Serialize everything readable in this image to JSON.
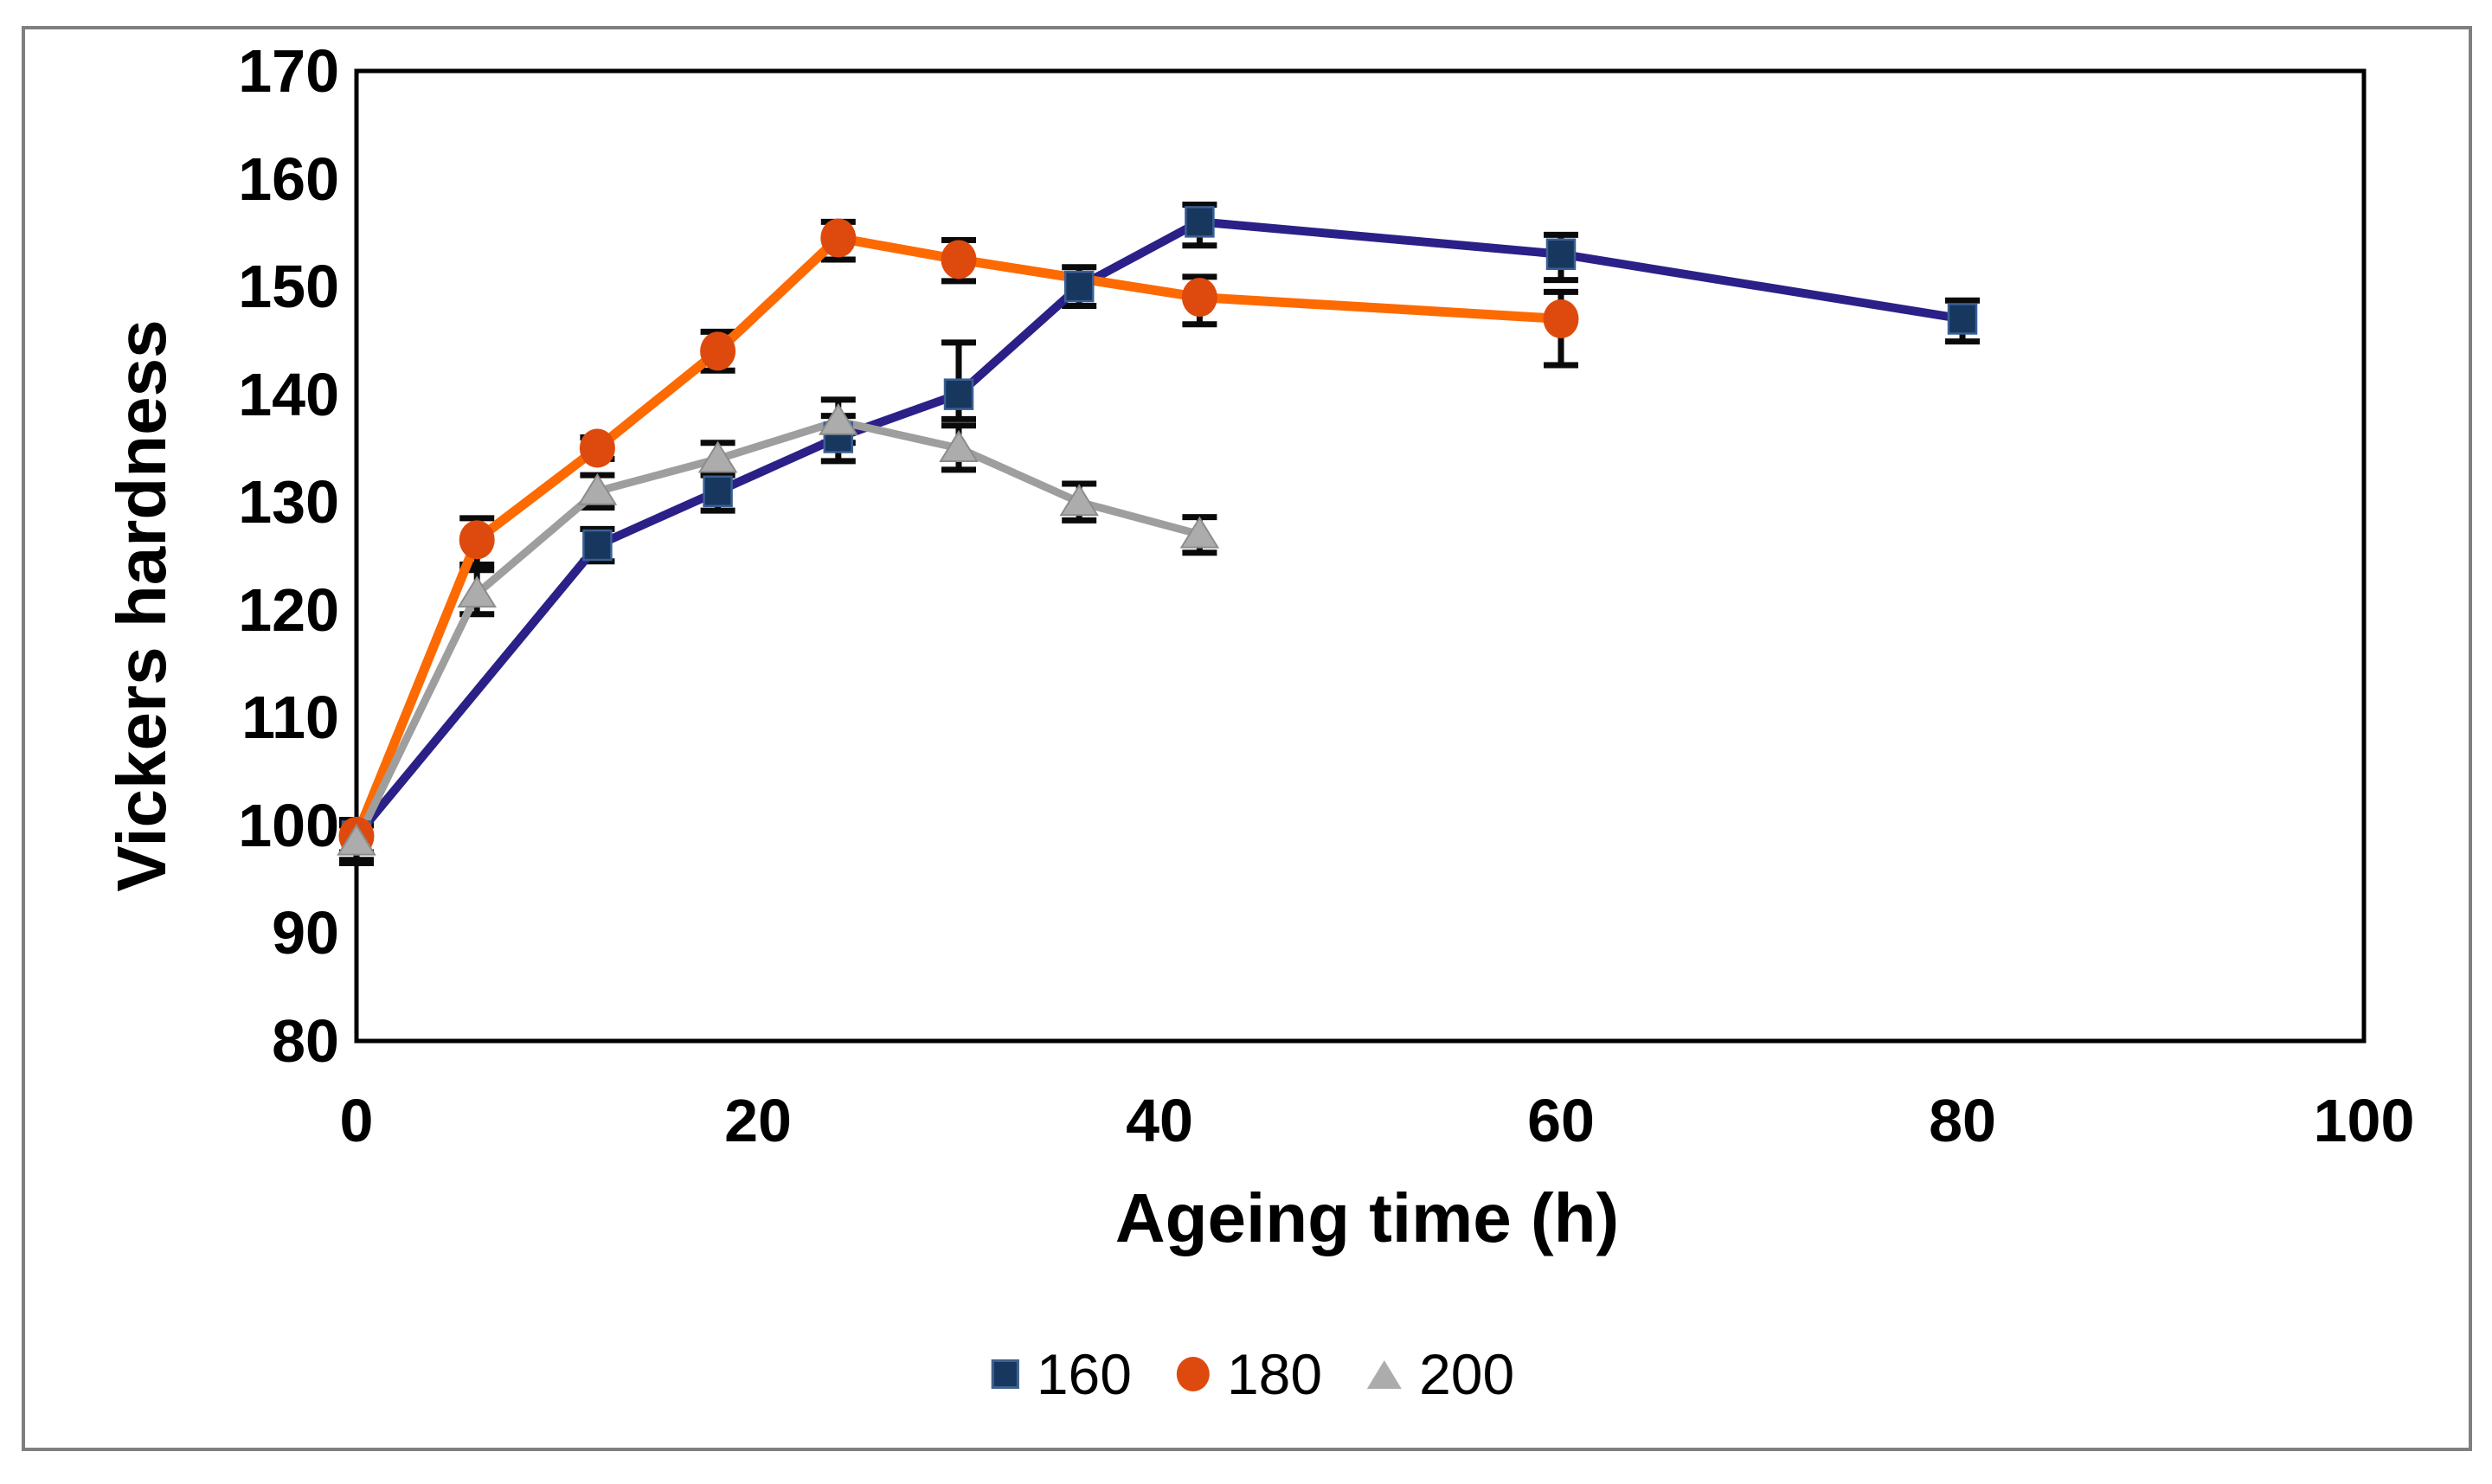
{
  "figure": {
    "x_axis_title": "Ageing time (h)",
    "y_axis_title": "Vickers hardness",
    "colors": {
      "outer_border": "#7f7f7f",
      "plot_frame": "#000000",
      "error_bar": "#0a0a0a",
      "background": "#ffffff",
      "text": "#000000"
    }
  },
  "chart_data": {
    "type": "line",
    "title": "",
    "xlabel": "Ageing time (h)",
    "ylabel": "Vickers hardness",
    "xlim": [
      0,
      100
    ],
    "ylim": [
      80,
      170
    ],
    "x_ticks": [
      0,
      20,
      40,
      60,
      80,
      100
    ],
    "y_ticks": [
      170,
      160,
      150,
      140,
      130,
      120,
      110,
      100,
      90,
      80
    ],
    "grid": false,
    "legend_position": "bottom-center",
    "error_bars": true,
    "series": [
      {
        "name": "160",
        "marker": "square",
        "line_color": "#2b2087",
        "marker_color": "#17375e",
        "marker_edge": "#3a5f94",
        "x": [
          0,
          12,
          18,
          24,
          30,
          36,
          42,
          60,
          80
        ],
        "y": [
          99,
          126,
          131,
          136,
          140,
          150,
          156,
          153,
          147
        ],
        "err_up": [
          1.5,
          1.5,
          1.8,
          2.0,
          4.8,
          1.8,
          1.6,
          1.8,
          1.7
        ],
        "err_dn": [
          2.2,
          1.5,
          1.8,
          2.2,
          2.3,
          1.8,
          2.2,
          2.4,
          2.1
        ]
      },
      {
        "name": "180",
        "marker": "circle",
        "line_color": "#fd6a02",
        "marker_color": "#de4a0d",
        "marker_edge": "#de4a0d",
        "x": [
          0,
          6,
          12,
          18,
          24,
          30,
          42,
          60
        ],
        "y": [
          99,
          126.5,
          135,
          144,
          154.5,
          152.5,
          149,
          147
        ],
        "err_up": [
          1.5,
          2.0,
          1.0,
          1.8,
          1.5,
          1.8,
          1.9,
          2.5
        ],
        "err_dn": [
          1.5,
          2.3,
          1.0,
          1.8,
          2.0,
          2.0,
          2.5,
          4.3
        ]
      },
      {
        "name": "200",
        "marker": "triangle",
        "line_color": "#9e9e9e",
        "marker_color": "#acacac",
        "marker_edge": "#8c8c8c",
        "x": [
          0,
          6,
          12,
          18,
          24,
          30,
          36,
          42
        ],
        "y": [
          98.5,
          121.5,
          131,
          134,
          137.5,
          135,
          130,
          127
        ],
        "err_up": [
          1.5,
          2.2,
          1.5,
          1.5,
          2.0,
          2.1,
          1.7,
          1.6
        ],
        "err_dn": [
          2.0,
          1.9,
          1.5,
          1.5,
          2.0,
          2.0,
          1.7,
          1.7
        ]
      }
    ]
  }
}
